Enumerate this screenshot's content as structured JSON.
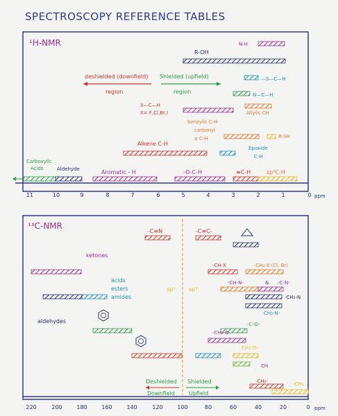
{
  "title": "SPECTROSCOPY REFERENCE TABLES",
  "colors": {
    "ink": "#2f3a8c",
    "purple": "#9a2f8f",
    "red": "#c8352e",
    "orange": "#e0782a",
    "green": "#2f9a4a",
    "teal": "#1f8fb0",
    "navy": "#23306e",
    "yellow": "#e6b820",
    "brown": "#8a4a1a",
    "dash": "#d8a63a"
  },
  "hnmr": {
    "title": "¹H-NMR",
    "axis_unit": "ppm",
    "ticks": [
      "11",
      "10",
      "9",
      "8",
      "7",
      "6",
      "5",
      "4",
      "3",
      "2",
      "1",
      "0"
    ],
    "deshielded_label": "deshielded (downfield)",
    "shielded_label": "Shielded (upfield)",
    "region_left": "region",
    "region_right": "region",
    "labels": {
      "nh": "N-H",
      "roh": "R-OH",
      "scH": "—S—C—H",
      "amineH": "N—C—H",
      "allylic": "Allylic CH",
      "haloTop": "X—C—H",
      "haloBottom": "X= F,Cl,Br,I",
      "benzylic": "benzylic C-H",
      "carbonyl": "carbonyl",
      "alphaCH": "α C-H",
      "rsh": "R-SH",
      "alkene": "Alkene C-H",
      "epoxide": "Epoxide",
      "epoxideCH": "C-H",
      "carboxylic": "Carboxylic",
      "acids": "Acids",
      "aldehyde": "Aldehyde",
      "aromatic": "Aromatic - H",
      "ether": "-O-C-H",
      "alkyne": "≡C-H",
      "sp3": "sp³C-H"
    }
  },
  "cnmr": {
    "title": "¹³C-NMR",
    "axis_unit": "ppm",
    "ticks": [
      "220",
      "200",
      "180",
      "160",
      "140",
      "120",
      "100",
      "80",
      "60",
      "40",
      "20",
      "0"
    ],
    "labels": {
      "nitrile": "-C≡N",
      "alkyne": "-C≡C-",
      "ketones": "ketones",
      "acids": "acids",
      "esters": "esters",
      "amides": "amides",
      "aldehydes": "aldehydes",
      "sp2": "sp²",
      "sp3": "sp³",
      "haloC": "-CH-X",
      "ch2x": "-CH₂-X (Cl, Br)",
      "ch_n": "-CH-N-",
      "amp": "&",
      "c_n": "-C-N-",
      "ch2n": "-CH₂-N",
      "ch3n": "CH₃-N-",
      "ch2o": "-CH₂-O-",
      "ch3o": "CH₃-O-",
      "co": "-C-O-",
      "ch2": "-CH₂-",
      "ch3": "-CH₃",
      "ch": "CH",
      "deshielded": "Deshielded",
      "shielded": "Shielded",
      "downfield": "Downfield",
      "upfield": "Upfield"
    }
  }
}
